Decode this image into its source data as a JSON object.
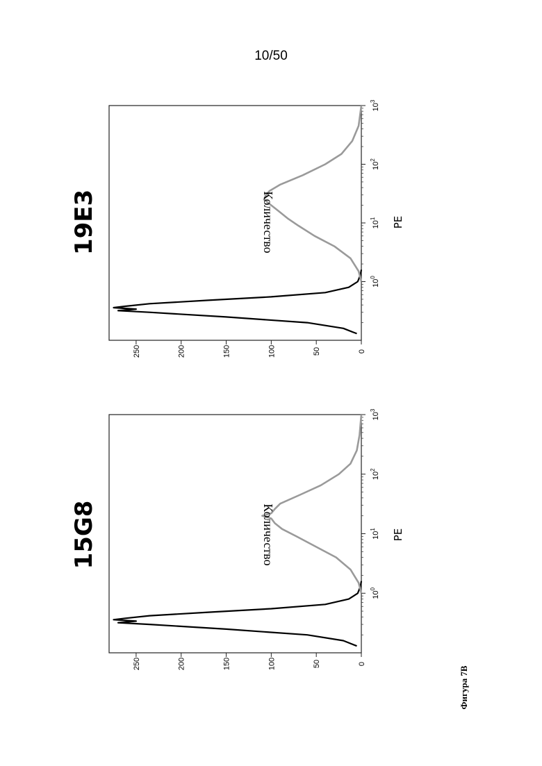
{
  "page": {
    "number": "10/50"
  },
  "figure_caption": "Фигура 7B",
  "chart_data": [
    {
      "type": "histogram",
      "title": "15G8",
      "xlabel": "PE",
      "ylabel": "Количество",
      "x_scale": "log",
      "xlim": [
        0.1,
        1000
      ],
      "ylim": [
        0,
        280
      ],
      "x_ticks": [
        {
          "value": 1,
          "base": "10",
          "exp": "0"
        },
        {
          "value": 10,
          "base": "10",
          "exp": "1"
        },
        {
          "value": 100,
          "base": "10",
          "exp": "2"
        },
        {
          "value": 1000,
          "base": "10",
          "exp": "3"
        }
      ],
      "y_ticks": [
        "0",
        "50",
        "100",
        "150",
        "200",
        "250"
      ],
      "grid": false,
      "series": [
        {
          "color": "#000000",
          "values": [
            [
              0.13,
              5
            ],
            [
              0.16,
              20
            ],
            [
              0.2,
              60
            ],
            [
              0.25,
              150
            ],
            [
              0.3,
              235
            ],
            [
              0.32,
              270
            ],
            [
              0.34,
              250
            ],
            [
              0.36,
              275
            ],
            [
              0.38,
              262
            ],
            [
              0.42,
              235
            ],
            [
              0.48,
              170
            ],
            [
              0.55,
              100
            ],
            [
              0.65,
              40
            ],
            [
              0.8,
              14
            ],
            [
              1.0,
              4
            ],
            [
              1.3,
              1
            ],
            [
              1.6,
              0
            ]
          ]
        },
        {
          "color": "#9a9a9a",
          "values": [
            [
              1.0,
              0
            ],
            [
              1.5,
              3
            ],
            [
              2.5,
              12
            ],
            [
              4,
              28
            ],
            [
              6,
              50
            ],
            [
              9,
              72
            ],
            [
              12,
              88
            ],
            [
              15,
              96
            ],
            [
              18,
              100
            ],
            [
              20,
              110
            ],
            [
              22,
              100
            ],
            [
              26,
              96
            ],
            [
              32,
              90
            ],
            [
              45,
              68
            ],
            [
              65,
              45
            ],
            [
              100,
              25
            ],
            [
              150,
              12
            ],
            [
              250,
              5
            ],
            [
              450,
              2
            ],
            [
              1000,
              0
            ]
          ]
        }
      ]
    },
    {
      "type": "histogram",
      "title": "19E3",
      "xlabel": "PE",
      "ylabel": "Количество",
      "x_scale": "log",
      "xlim": [
        0.1,
        1000
      ],
      "ylim": [
        0,
        280
      ],
      "x_ticks": [
        {
          "value": 1,
          "base": "10",
          "exp": "0"
        },
        {
          "value": 10,
          "base": "10",
          "exp": "1"
        },
        {
          "value": 100,
          "base": "10",
          "exp": "2"
        },
        {
          "value": 1000,
          "base": "10",
          "exp": "3"
        }
      ],
      "y_ticks": [
        "0",
        "50",
        "100",
        "150",
        "200",
        "250"
      ],
      "grid": false,
      "series": [
        {
          "color": "#000000",
          "values": [
            [
              0.13,
              5
            ],
            [
              0.16,
              20
            ],
            [
              0.2,
              60
            ],
            [
              0.25,
              150
            ],
            [
              0.3,
              235
            ],
            [
              0.32,
              270
            ],
            [
              0.34,
              250
            ],
            [
              0.36,
              275
            ],
            [
              0.38,
              262
            ],
            [
              0.42,
              235
            ],
            [
              0.48,
              170
            ],
            [
              0.55,
              100
            ],
            [
              0.65,
              40
            ],
            [
              0.8,
              14
            ],
            [
              1.0,
              4
            ],
            [
              1.3,
              1
            ],
            [
              1.6,
              0
            ]
          ]
        },
        {
          "color": "#9a9a9a",
          "values": [
            [
              1.0,
              0
            ],
            [
              1.5,
              3
            ],
            [
              2.5,
              12
            ],
            [
              4,
              30
            ],
            [
              6,
              52
            ],
            [
              9,
              70
            ],
            [
              12,
              82
            ],
            [
              16,
              92
            ],
            [
              20,
              100
            ],
            [
              25,
              108
            ],
            [
              30,
              106
            ],
            [
              35,
              102
            ],
            [
              45,
              90
            ],
            [
              65,
              65
            ],
            [
              100,
              40
            ],
            [
              150,
              22
            ],
            [
              250,
              10
            ],
            [
              450,
              3
            ],
            [
              1000,
              0
            ]
          ]
        }
      ]
    }
  ]
}
